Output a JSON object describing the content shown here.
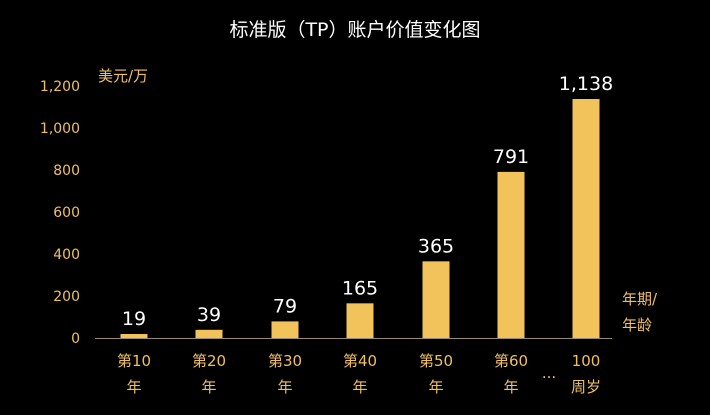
{
  "chart_data": {
    "type": "bar",
    "title": "标准版（TP）账户价值变化图",
    "ylabel": "美元/万",
    "xlabel": [
      "年期/",
      "年龄"
    ],
    "categories": [
      [
        "第10",
        "年"
      ],
      [
        "第20",
        "年"
      ],
      [
        "第30",
        "年"
      ],
      [
        "第40",
        "年"
      ],
      [
        "第50",
        "年"
      ],
      [
        "第60",
        "年"
      ],
      [
        "100",
        "周岁"
      ]
    ],
    "values": [
      19,
      39,
      79,
      165,
      365,
      791,
      1138
    ],
    "value_labels": [
      "19",
      "39",
      "79",
      "165",
      "365",
      "791",
      "1,138"
    ],
    "ellipsis": "...",
    "ylim": [
      0,
      1200
    ],
    "yticks": [
      0,
      200,
      400,
      600,
      800,
      1000,
      1200
    ],
    "ytick_labels": [
      "0",
      "200",
      "400",
      "600",
      "800",
      "1,000",
      "1,200"
    ],
    "grid": false,
    "legend": "none",
    "colors": {
      "bar": "#f3c35b",
      "axis_text": "#f0c060",
      "data_label": "#ffffff",
      "background": "#000000"
    }
  }
}
